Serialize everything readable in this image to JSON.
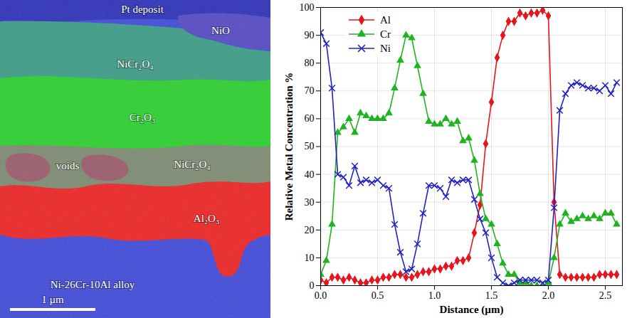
{
  "image": {
    "labels": [
      "Pt deposit",
      "NiO",
      "NiCr₂O₄",
      "Cr₂O₃",
      "voids",
      "NiCr₂O₄",
      "Al₂O₃",
      "Ni-26Cr-10Al alloy"
    ],
    "scale_bar": "1 µm"
  },
  "chart_data": {
    "type": "line",
    "x_label": "Distance (µm)",
    "y_label": "Relative Metal Concentration %",
    "x": [
      0,
      0.05,
      0.1,
      0.15,
      0.2,
      0.25,
      0.3,
      0.35,
      0.4,
      0.45,
      0.5,
      0.55,
      0.6,
      0.65,
      0.7,
      0.75,
      0.8,
      0.85,
      0.9,
      0.95,
      1,
      1.05,
      1.1,
      1.15,
      1.2,
      1.25,
      1.3,
      1.35,
      1.4,
      1.45,
      1.5,
      1.55,
      1.6,
      1.65,
      1.7,
      1.75,
      1.8,
      1.85,
      1.9,
      1.95,
      2,
      2.05,
      2.1,
      2.15,
      2.2,
      2.25,
      2.3,
      2.35,
      2.4,
      2.45,
      2.5,
      2.55,
      2.6
    ],
    "series": [
      {
        "name": "Al",
        "color": "#e8141c",
        "marker": "diamond",
        "values": [
          2,
          1,
          3,
          3,
          2,
          3,
          2,
          1,
          1,
          2,
          2,
          3,
          3,
          4,
          4,
          3,
          3,
          4,
          5,
          5,
          6,
          6,
          7,
          7,
          9,
          9,
          10,
          19,
          29,
          51,
          66,
          82,
          90,
          95,
          95,
          98,
          97,
          98,
          98,
          99,
          97,
          30,
          4,
          3,
          3,
          3,
          3,
          3,
          3,
          4,
          4,
          4,
          4
        ]
      },
      {
        "name": "Cr",
        "color": "#1fb41f",
        "marker": "triangle",
        "values": [
          4,
          9,
          22,
          55,
          57,
          60,
          55,
          62,
          61,
          60,
          60,
          60,
          62,
          71,
          81,
          90,
          89,
          79,
          69,
          59,
          58,
          58,
          60,
          58,
          59,
          52,
          53,
          45,
          33,
          24,
          22,
          15,
          8,
          4,
          4,
          1,
          1,
          0,
          0,
          0,
          1,
          10,
          22,
          26,
          23,
          24,
          25,
          24,
          25,
          24,
          26,
          26,
          22
        ]
      },
      {
        "name": "Ni",
        "color": "#2323c0",
        "marker": "x",
        "values": [
          91,
          87,
          71,
          40,
          39,
          36,
          43,
          37,
          38,
          37,
          38,
          36,
          35,
          22,
          12,
          5,
          6,
          15,
          26,
          36,
          36,
          35,
          32,
          38,
          37,
          38,
          38,
          31,
          24,
          19,
          10,
          3,
          1,
          0,
          1,
          2,
          2,
          2,
          2,
          1,
          2,
          28,
          63,
          69,
          72,
          73,
          72,
          71,
          71,
          70,
          72,
          69,
          73
        ]
      }
    ],
    "xlim": [
      0,
      2.65
    ],
    "xticks": [
      0,
      0.5,
      1,
      1.5,
      2,
      2.5
    ],
    "ylim": [
      0,
      100
    ],
    "yticks": [
      0,
      10,
      20,
      30,
      40,
      50,
      60,
      70,
      80,
      90,
      100
    ],
    "grid": true,
    "legend": "top-left"
  }
}
